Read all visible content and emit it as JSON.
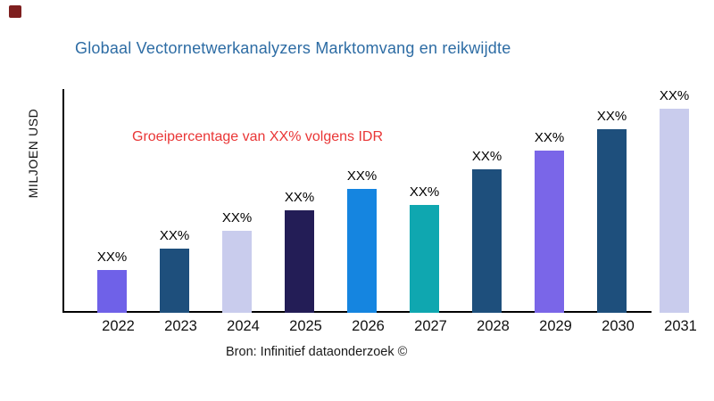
{
  "logo": {
    "name": "brand-logo-mark",
    "color": "#7E1F1F"
  },
  "title": {
    "text": "Globaal Vectornetwerkanalyzers Marktomvang en reikwijdte",
    "color": "#2D6CA4"
  },
  "annotation": {
    "text": "Groeipercentage van XX% volgens IDR",
    "color": "#E93636"
  },
  "y_axis": {
    "label": "MILJOEN USD"
  },
  "footer": {
    "text": "Bron: Infinitief dataonderzoek ©"
  },
  "chart_data": {
    "type": "bar",
    "title": "Globaal Vectornetwerkanalyzers Marktomvang en reikwijdte",
    "xlabel": "",
    "ylabel": "MILJOEN USD",
    "categories": [
      "2022",
      "2023",
      "2024",
      "2025",
      "2026",
      "2027",
      "2028",
      "2029",
      "2030",
      "2031"
    ],
    "value_labels": [
      "XX%",
      "XX%",
      "XX%",
      "XX%",
      "XX%",
      "XX%",
      "XX%",
      "XX%",
      "XX%",
      "XX%"
    ],
    "values_relative": [
      48,
      72,
      92,
      115,
      139,
      121,
      161,
      182,
      206,
      229
    ],
    "values_note": "numeric values not shown in chart; labels are XX% placeholders; values_relative are estimated bar heights in px",
    "bar_colors": [
      "#6F61E8",
      "#1E4F7C",
      "#C9CCED",
      "#231D56",
      "#1585E0",
      "#0FA7B0",
      "#1E4F7C",
      "#7A66E8",
      "#1E4F7C",
      "#C9CCED"
    ],
    "annotation": "Groeipercentage van XX% volgens IDR",
    "source": "Bron: Infinitief dataonderzoek ©",
    "grid": false,
    "legend": false,
    "axis_color": "#000000",
    "background": "#ffffff"
  }
}
